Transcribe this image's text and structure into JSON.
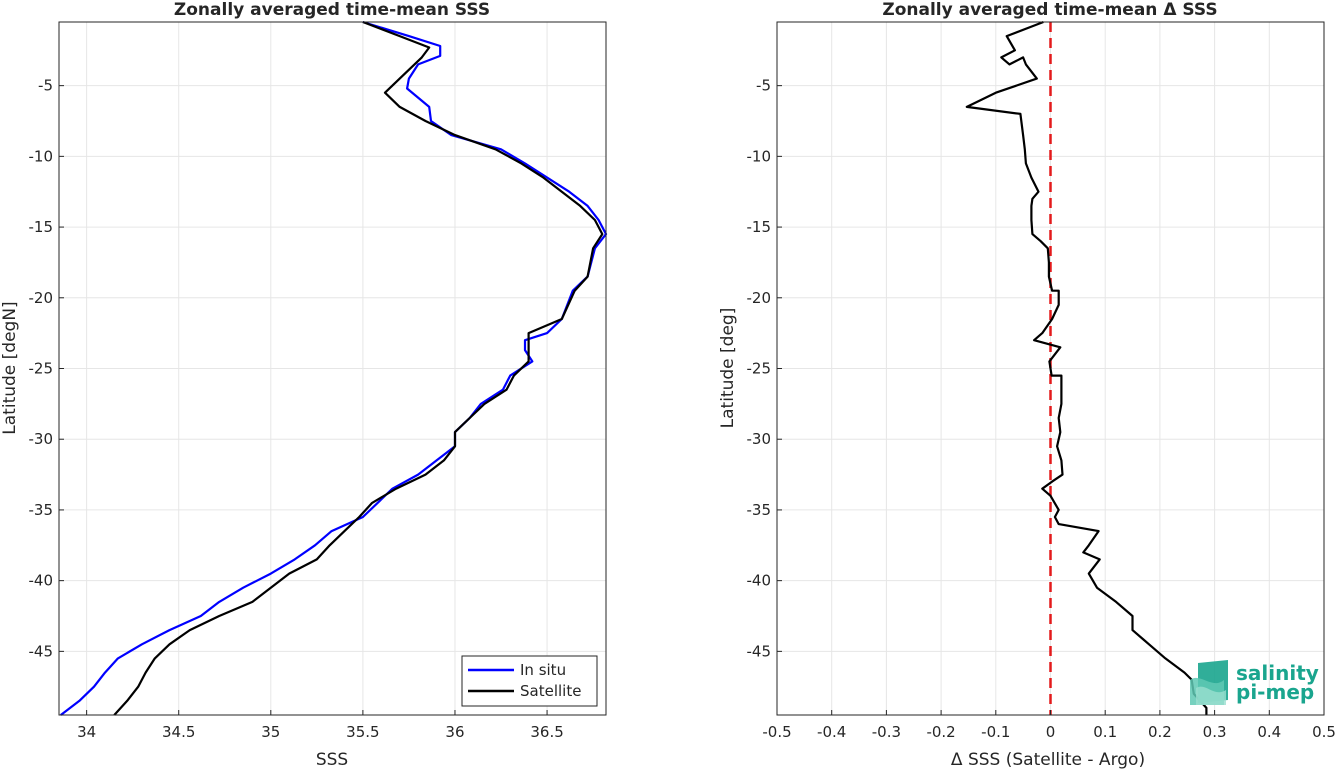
{
  "chart_data": [
    {
      "type": "line",
      "title": "Zonally averaged time-mean SSS",
      "xlabel": "SSS",
      "ylabel": "Latitude [degN]",
      "xlim": [
        33.85,
        36.82
      ],
      "ylim": [
        -49.5,
        -0.5
      ],
      "xticks": [
        "34",
        "34.5",
        "35",
        "35.5",
        "36",
        "36.5"
      ],
      "yticks": [
        "-5",
        "-10",
        "-15",
        "-20",
        "-25",
        "-30",
        "-35",
        "-40",
        "-45"
      ],
      "grid": true,
      "legend_position": "bottom-right",
      "series": [
        {
          "name": "In situ",
          "color": "#0000ff",
          "points": [
            [
              35.5,
              -0.5
            ],
            [
              35.75,
              -1.5
            ],
            [
              35.92,
              -2.2
            ],
            [
              35.92,
              -2.9
            ],
            [
              35.8,
              -3.5
            ],
            [
              35.75,
              -4.5
            ],
            [
              35.74,
              -5.2
            ],
            [
              35.86,
              -6.5
            ],
            [
              35.87,
              -7.5
            ],
            [
              35.98,
              -8.5
            ],
            [
              36.25,
              -9.5
            ],
            [
              36.38,
              -10.5
            ],
            [
              36.5,
              -11.5
            ],
            [
              36.62,
              -12.5
            ],
            [
              36.72,
              -13.5
            ],
            [
              36.78,
              -14.5
            ],
            [
              36.82,
              -15.5
            ],
            [
              36.76,
              -16.5
            ],
            [
              36.72,
              -18.5
            ],
            [
              36.64,
              -19.5
            ],
            [
              36.58,
              -21.5
            ],
            [
              36.5,
              -22.5
            ],
            [
              36.38,
              -23.0
            ],
            [
              36.38,
              -23.7
            ],
            [
              36.42,
              -24.5
            ],
            [
              36.3,
              -25.5
            ],
            [
              36.26,
              -26.5
            ],
            [
              36.14,
              -27.5
            ],
            [
              36.08,
              -28.5
            ],
            [
              36.0,
              -29.5
            ],
            [
              36.0,
              -30.5
            ],
            [
              35.9,
              -31.5
            ],
            [
              35.8,
              -32.5
            ],
            [
              35.66,
              -33.5
            ],
            [
              35.58,
              -34.5
            ],
            [
              35.5,
              -35.5
            ],
            [
              35.33,
              -36.5
            ],
            [
              35.24,
              -37.5
            ],
            [
              35.13,
              -38.5
            ],
            [
              35.0,
              -39.5
            ],
            [
              34.85,
              -40.5
            ],
            [
              34.72,
              -41.5
            ],
            [
              34.62,
              -42.5
            ],
            [
              34.45,
              -43.5
            ],
            [
              34.3,
              -44.5
            ],
            [
              34.17,
              -45.5
            ],
            [
              34.1,
              -46.5
            ],
            [
              34.04,
              -47.5
            ],
            [
              33.96,
              -48.5
            ],
            [
              33.86,
              -49.5
            ]
          ]
        },
        {
          "name": "Satellite",
          "color": "#000000",
          "points": [
            [
              35.5,
              -0.5
            ],
            [
              35.7,
              -1.5
            ],
            [
              35.86,
              -2.3
            ],
            [
              35.82,
              -3.0
            ],
            [
              35.7,
              -4.5
            ],
            [
              35.62,
              -5.5
            ],
            [
              35.7,
              -6.5
            ],
            [
              35.84,
              -7.5
            ],
            [
              36.0,
              -8.5
            ],
            [
              36.22,
              -9.5
            ],
            [
              36.36,
              -10.5
            ],
            [
              36.48,
              -11.5
            ],
            [
              36.58,
              -12.5
            ],
            [
              36.68,
              -13.5
            ],
            [
              36.76,
              -14.5
            ],
            [
              36.8,
              -15.5
            ],
            [
              36.75,
              -16.5
            ],
            [
              36.72,
              -18.5
            ],
            [
              36.65,
              -19.5
            ],
            [
              36.58,
              -21.5
            ],
            [
              36.4,
              -22.5
            ],
            [
              36.4,
              -23.5
            ],
            [
              36.4,
              -24.5
            ],
            [
              36.32,
              -25.5
            ],
            [
              36.28,
              -26.5
            ],
            [
              36.16,
              -27.5
            ],
            [
              36.08,
              -28.5
            ],
            [
              36.0,
              -29.5
            ],
            [
              36.0,
              -30.5
            ],
            [
              35.94,
              -31.5
            ],
            [
              35.84,
              -32.5
            ],
            [
              35.68,
              -33.5
            ],
            [
              35.55,
              -34.5
            ],
            [
              35.48,
              -35.5
            ],
            [
              35.4,
              -36.5
            ],
            [
              35.32,
              -37.5
            ],
            [
              35.25,
              -38.5
            ],
            [
              35.1,
              -39.5
            ],
            [
              35.0,
              -40.5
            ],
            [
              34.9,
              -41.5
            ],
            [
              34.72,
              -42.5
            ],
            [
              34.56,
              -43.5
            ],
            [
              34.45,
              -44.5
            ],
            [
              34.37,
              -45.5
            ],
            [
              34.32,
              -46.5
            ],
            [
              34.28,
              -47.5
            ],
            [
              34.22,
              -48.5
            ],
            [
              34.15,
              -49.5
            ]
          ]
        }
      ]
    },
    {
      "type": "line",
      "title": "Zonally averaged time-mean Δ SSS",
      "xlabel": "Δ SSS (Satellite - Argo)",
      "ylabel": "Latitude [deg]",
      "xlim": [
        -0.5,
        0.5
      ],
      "ylim": [
        -49.5,
        -0.5
      ],
      "xticks": [
        "-0.5",
        "-0.4",
        "-0.3",
        "-0.2",
        "-0.1",
        "0",
        "0.1",
        "0.2",
        "0.3",
        "0.4",
        "0.5"
      ],
      "yticks": [
        "-5",
        "-10",
        "-15",
        "-20",
        "-25",
        "-30",
        "-35",
        "-40",
        "-45"
      ],
      "grid": true,
      "reference_line": {
        "x": 0,
        "color": "#e31a1c",
        "style": "dashed"
      },
      "series": [
        {
          "color": "#000000",
          "points": [
            [
              -0.013,
              -0.5
            ],
            [
              -0.08,
              -1.5
            ],
            [
              -0.065,
              -2.5
            ],
            [
              -0.09,
              -3.0
            ],
            [
              -0.075,
              -3.5
            ],
            [
              -0.05,
              -3.0
            ],
            [
              -0.045,
              -3.5
            ],
            [
              -0.025,
              -4.5
            ],
            [
              -0.1,
              -5.5
            ],
            [
              -0.153,
              -6.5
            ],
            [
              -0.055,
              -7.0
            ],
            [
              -0.05,
              -8.5
            ],
            [
              -0.047,
              -9.5
            ],
            [
              -0.045,
              -10.5
            ],
            [
              -0.035,
              -11.5
            ],
            [
              -0.022,
              -12.5
            ],
            [
              -0.033,
              -13.0
            ],
            [
              -0.035,
              -13.5
            ],
            [
              -0.035,
              -14.5
            ],
            [
              -0.033,
              -15.5
            ],
            [
              -0.018,
              -16.0
            ],
            [
              -0.005,
              -16.5
            ],
            [
              -0.003,
              -17.5
            ],
            [
              -0.003,
              -18.5
            ],
            [
              0.003,
              -19.5
            ],
            [
              0.015,
              -19.5
            ],
            [
              0.015,
              -20.5
            ],
            [
              0.003,
              -21.5
            ],
            [
              -0.015,
              -22.5
            ],
            [
              -0.03,
              -23.0
            ],
            [
              0.018,
              -23.5
            ],
            [
              -0.002,
              -24.5
            ],
            [
              0.002,
              -25.5
            ],
            [
              0.02,
              -25.5
            ],
            [
              0.02,
              -27.5
            ],
            [
              0.015,
              -28.5
            ],
            [
              0.018,
              -29.5
            ],
            [
              0.012,
              -30.5
            ],
            [
              0.02,
              -31.5
            ],
            [
              0.022,
              -32.5
            ],
            [
              0.003,
              -33.0
            ],
            [
              -0.015,
              -33.5
            ],
            [
              0.0,
              -34.0
            ],
            [
              0.015,
              -35.0
            ],
            [
              0.008,
              -35.5
            ],
            [
              0.015,
              -36.0
            ],
            [
              0.088,
              -36.5
            ],
            [
              0.07,
              -37.5
            ],
            [
              0.06,
              -38.0
            ],
            [
              0.09,
              -38.5
            ],
            [
              0.07,
              -39.5
            ],
            [
              0.085,
              -40.5
            ],
            [
              0.12,
              -41.5
            ],
            [
              0.15,
              -42.5
            ],
            [
              0.15,
              -43.5
            ],
            [
              0.18,
              -44.5
            ],
            [
              0.21,
              -45.5
            ],
            [
              0.245,
              -46.5
            ],
            [
              0.258,
              -47.0
            ],
            [
              0.262,
              -48.0
            ],
            [
              0.285,
              -49.0
            ],
            [
              0.285,
              -49.5
            ]
          ]
        }
      ]
    }
  ],
  "logo": {
    "line1": "salinity",
    "line2": "pi-mep",
    "color": "#1aa58e"
  }
}
